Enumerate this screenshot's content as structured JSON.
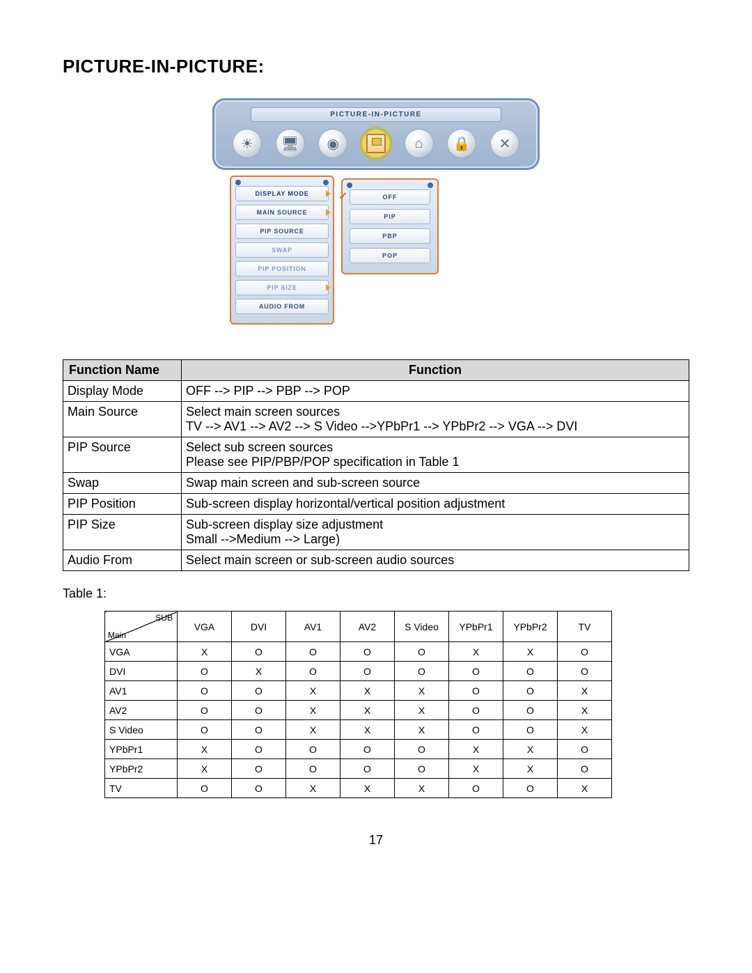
{
  "title": "PICTURE-IN-PICTURE:",
  "osd": {
    "header": "PICTURE-IN-PICTURE",
    "icons": [
      "sun",
      "monitor",
      "camera",
      "pip",
      "tv",
      "lock",
      "tools"
    ],
    "selected_index": 3,
    "menu": [
      {
        "label": "DISPLAY MODE",
        "active": true,
        "arrow": true
      },
      {
        "label": "MAIN SOURCE",
        "active": false,
        "arrow": true
      },
      {
        "label": "PIP SOURCE",
        "active": false,
        "arrow": false
      },
      {
        "label": "SWAP",
        "active": false,
        "arrow": false,
        "disabled": true
      },
      {
        "label": "PIP POSITION",
        "active": false,
        "arrow": false,
        "disabled": true
      },
      {
        "label": "PIP SIZE",
        "active": false,
        "arrow": true,
        "disabled": true
      },
      {
        "label": "AUDIO FROM",
        "active": false,
        "arrow": false
      }
    ],
    "submenu": [
      "OFF",
      "PIP",
      "PBP",
      "POP"
    ]
  },
  "func_table": {
    "headers": [
      "Function Name",
      "Function"
    ],
    "rows": [
      {
        "name": "Display Mode",
        "desc": "OFF --> PIP --> PBP --> POP"
      },
      {
        "name": "Main Source",
        "desc": "Select main screen sources\nTV --> AV1 --> AV2 --> S Video -->YPbPr1 --> YPbPr2 --> VGA --> DVI"
      },
      {
        "name": "PIP Source",
        "desc": "Select sub screen sources\nPlease see PIP/PBP/POP specification in Table 1"
      },
      {
        "name": "Swap",
        "desc": "Swap main screen and sub-screen source"
      },
      {
        "name": "PIP Position",
        "desc": "Sub-screen display horizontal/vertical position adjustment"
      },
      {
        "name": "PIP Size",
        "desc": "Sub-screen display size adjustment\nSmall -->Medium --> Large)"
      },
      {
        "name": "Audio From",
        "desc": "Select main screen or sub-screen audio sources"
      }
    ]
  },
  "table1_label": "Table 1:",
  "matrix": {
    "diag": {
      "top": "SUB",
      "bottom": "Main"
    },
    "cols": [
      "VGA",
      "DVI",
      "AV1",
      "AV2",
      "S Video",
      "YPbPr1",
      "YPbPr2",
      "TV"
    ],
    "rows": [
      "VGA",
      "DVI",
      "AV1",
      "AV2",
      "S Video",
      "YPbPr1",
      "YPbPr2",
      "TV"
    ],
    "cells": [
      [
        "X",
        "O",
        "O",
        "O",
        "O",
        "X",
        "X",
        "O"
      ],
      [
        "O",
        "X",
        "O",
        "O",
        "O",
        "O",
        "O",
        "O"
      ],
      [
        "O",
        "O",
        "X",
        "X",
        "X",
        "O",
        "O",
        "X"
      ],
      [
        "O",
        "O",
        "X",
        "X",
        "X",
        "O",
        "O",
        "X"
      ],
      [
        "O",
        "O",
        "X",
        "X",
        "X",
        "O",
        "O",
        "X"
      ],
      [
        "X",
        "O",
        "O",
        "O",
        "O",
        "X",
        "X",
        "O"
      ],
      [
        "X",
        "O",
        "O",
        "O",
        "O",
        "X",
        "X",
        "O"
      ],
      [
        "O",
        "O",
        "X",
        "X",
        "X",
        "O",
        "O",
        "X"
      ]
    ]
  },
  "page_number": "17"
}
